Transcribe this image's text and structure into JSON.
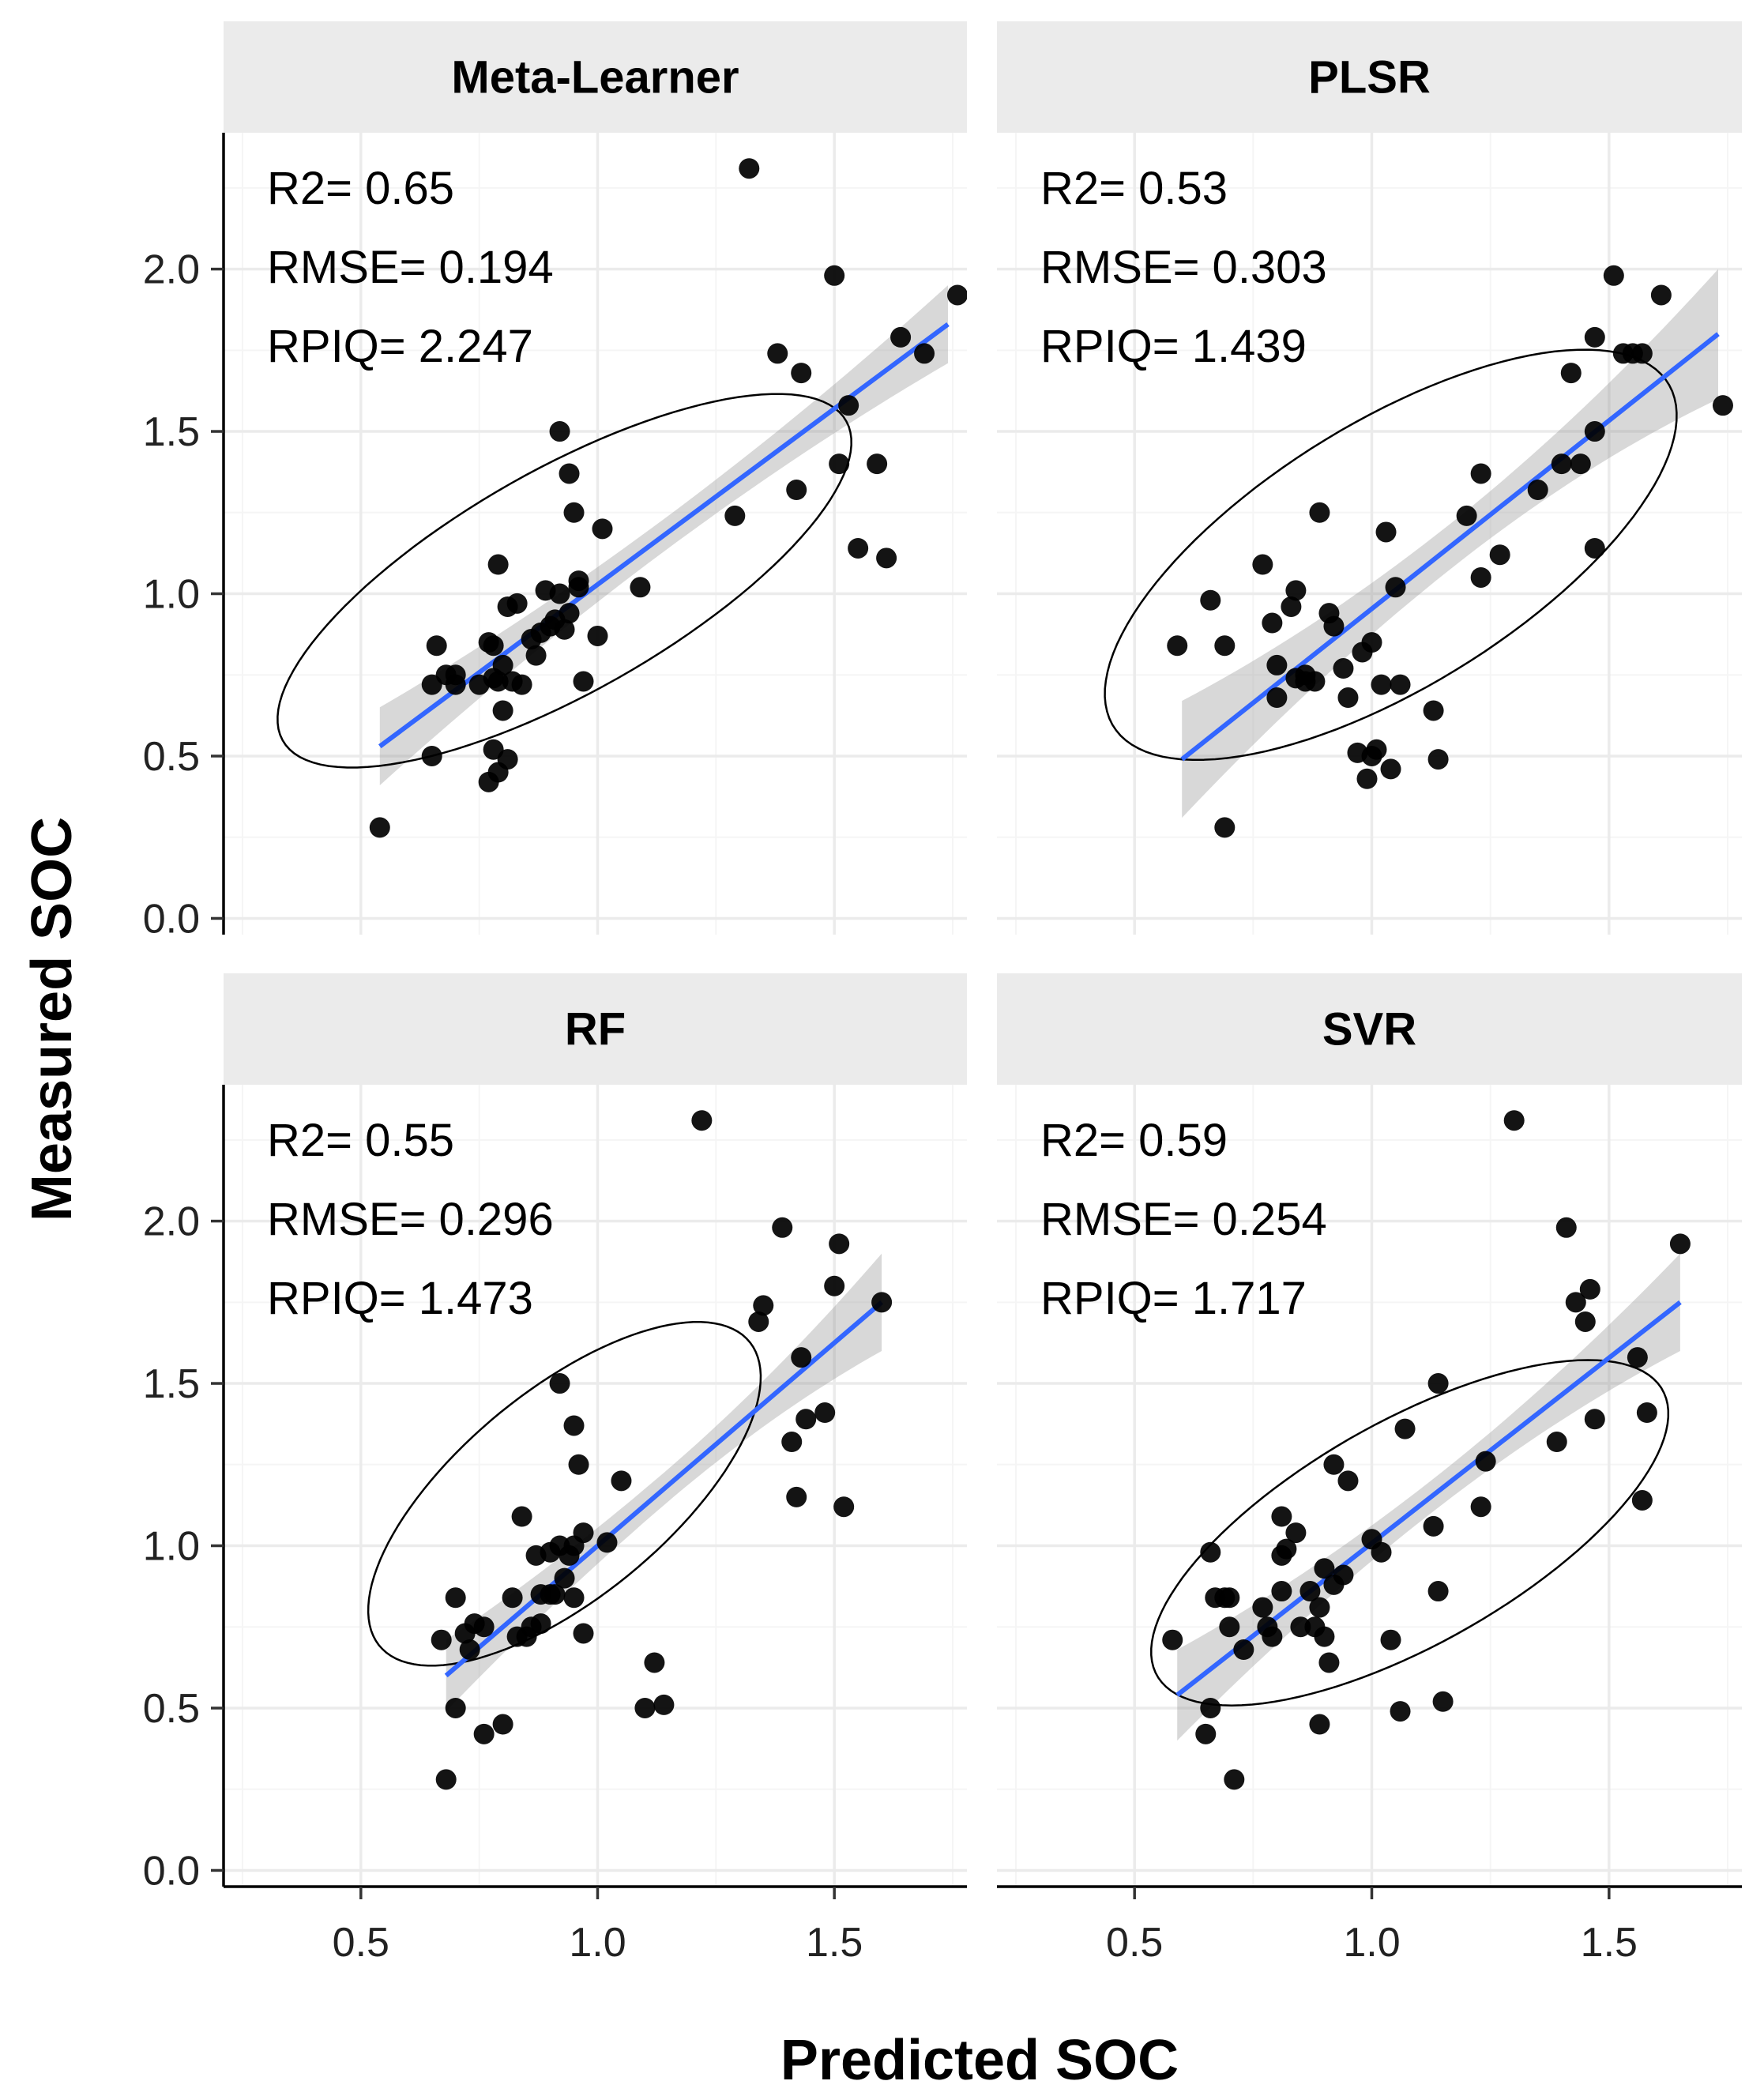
{
  "chart_data": {
    "type": "scatter",
    "xlabel": "Predicted SOC",
    "ylabel": "Measured SOC",
    "xlim": [
      0.21,
      1.78
    ],
    "ylim": [
      -0.05,
      2.42
    ],
    "xticks": [
      "0.5",
      "1.0",
      "1.5"
    ],
    "xtick_values": [
      0.5,
      1.0,
      1.5
    ],
    "yticks": [
      "0.0",
      "0.5",
      "1.0",
      "1.5",
      "2.0"
    ],
    "ytick_values": [
      0.0,
      0.5,
      1.0,
      1.5,
      2.0
    ],
    "grid": true,
    "colors": {
      "points": "#000000",
      "fit_line": "#3366ff",
      "band": "#999999",
      "strip": "#ebebeb",
      "grid": "#ebebeb"
    },
    "panels": [
      {
        "name": "Meta-Learner",
        "stats": [
          "R2= 0.65",
          "RMSE= 0.194",
          "RPIQ= 2.247"
        ],
        "fit": {
          "x0": 0.54,
          "y0": 0.53,
          "x1": 1.74,
          "y1": 1.83
        },
        "band_halfwidth": {
          "start": 0.12,
          "mid": 0.05,
          "end": 0.12
        },
        "ellipse": {
          "cx": 0.93,
          "cy": 1.04,
          "rx": 0.78,
          "ry": 0.3,
          "angle_deg": 43
        },
        "points": [
          [
            0.54,
            0.28
          ],
          [
            0.65,
            0.5
          ],
          [
            0.66,
            0.84
          ],
          [
            0.65,
            0.72
          ],
          [
            0.68,
            0.75
          ],
          [
            0.7,
            0.72
          ],
          [
            0.7,
            0.75
          ],
          [
            0.75,
            0.72
          ],
          [
            0.77,
            0.85
          ],
          [
            0.78,
            0.84
          ],
          [
            0.78,
            0.74
          ],
          [
            0.79,
            0.73
          ],
          [
            0.77,
            0.42
          ],
          [
            0.78,
            0.52
          ],
          [
            0.79,
            0.45
          ],
          [
            0.81,
            0.49
          ],
          [
            0.8,
            0.64
          ],
          [
            0.79,
            1.09
          ],
          [
            0.8,
            0.78
          ],
          [
            0.81,
            0.96
          ],
          [
            0.83,
            0.97
          ],
          [
            0.82,
            0.73
          ],
          [
            0.84,
            0.72
          ],
          [
            0.86,
            0.86
          ],
          [
            0.87,
            0.81
          ],
          [
            0.88,
            0.88
          ],
          [
            0.89,
            1.01
          ],
          [
            0.9,
            0.9
          ],
          [
            0.91,
            0.92
          ],
          [
            0.92,
            1.0
          ],
          [
            0.92,
            1.5
          ],
          [
            0.93,
            0.89
          ],
          [
            0.94,
            1.37
          ],
          [
            0.94,
            0.94
          ],
          [
            0.95,
            1.25
          ],
          [
            0.96,
            1.04
          ],
          [
            0.96,
            1.02
          ],
          [
            0.97,
            0.73
          ],
          [
            1.0,
            0.87
          ],
          [
            1.01,
            1.2
          ],
          [
            1.09,
            1.02
          ],
          [
            1.29,
            1.24
          ],
          [
            1.32,
            2.31
          ],
          [
            1.38,
            1.74
          ],
          [
            1.42,
            1.32
          ],
          [
            1.43,
            1.68
          ],
          [
            1.5,
            1.98
          ],
          [
            1.51,
            1.4
          ],
          [
            1.53,
            1.58
          ],
          [
            1.55,
            1.14
          ],
          [
            1.59,
            1.4
          ],
          [
            1.61,
            1.11
          ],
          [
            1.64,
            1.79
          ],
          [
            1.69,
            1.74
          ],
          [
            1.76,
            1.92
          ]
        ]
      },
      {
        "name": "PLSR",
        "stats": [
          "R2= 0.53",
          "RMSE= 0.303",
          "RPIQ= 1.439"
        ],
        "fit": {
          "x0": 0.6,
          "y0": 0.49,
          "x1": 1.73,
          "y1": 1.8
        },
        "band_halfwidth": {
          "start": 0.18,
          "mid": 0.07,
          "end": 0.2
        },
        "ellipse": {
          "cx": 1.04,
          "cy": 1.12,
          "rx": 0.8,
          "ry": 0.35,
          "angle_deg": 47
        },
        "points": [
          [
            0.59,
            0.84
          ],
          [
            0.66,
            0.98
          ],
          [
            0.69,
            0.28
          ],
          [
            0.69,
            0.84
          ],
          [
            0.77,
            1.09
          ],
          [
            0.79,
            0.91
          ],
          [
            0.8,
            0.78
          ],
          [
            0.8,
            0.68
          ],
          [
            0.83,
            0.96
          ],
          [
            0.84,
            1.01
          ],
          [
            0.84,
            0.74
          ],
          [
            0.86,
            0.73
          ],
          [
            0.86,
            0.75
          ],
          [
            0.88,
            0.73
          ],
          [
            0.89,
            1.25
          ],
          [
            0.91,
            0.94
          ],
          [
            0.92,
            0.9
          ],
          [
            0.94,
            0.77
          ],
          [
            0.95,
            0.68
          ],
          [
            0.97,
            0.51
          ],
          [
            0.98,
            0.82
          ],
          [
            0.99,
            0.43
          ],
          [
            1.0,
            0.5
          ],
          [
            1.0,
            0.85
          ],
          [
            1.01,
            0.52
          ],
          [
            1.02,
            0.72
          ],
          [
            1.03,
            1.19
          ],
          [
            1.04,
            0.46
          ],
          [
            1.05,
            1.02
          ],
          [
            1.06,
            0.72
          ],
          [
            1.13,
            0.64
          ],
          [
            1.14,
            0.49
          ],
          [
            1.2,
            1.24
          ],
          [
            1.23,
            1.05
          ],
          [
            1.23,
            1.37
          ],
          [
            1.27,
            1.12
          ],
          [
            1.35,
            1.32
          ],
          [
            1.4,
            1.4
          ],
          [
            1.42,
            1.68
          ],
          [
            1.44,
            1.4
          ],
          [
            1.47,
            1.14
          ],
          [
            1.47,
            1.79
          ],
          [
            1.47,
            1.5
          ],
          [
            1.51,
            1.98
          ],
          [
            1.53,
            1.74
          ],
          [
            1.55,
            1.74
          ],
          [
            1.57,
            1.74
          ],
          [
            1.61,
            1.92
          ],
          [
            1.74,
            1.58
          ]
        ]
      },
      {
        "name": "RF",
        "stats": [
          "R2= 0.55",
          "RMSE= 0.296",
          "RPIQ= 1.473"
        ],
        "fit": {
          "x0": 0.68,
          "y0": 0.6,
          "x1": 1.6,
          "y1": 1.75
        },
        "band_halfwidth": {
          "start": 0.11,
          "mid": 0.05,
          "end": 0.15
        },
        "ellipse": {
          "cx": 0.93,
          "cy": 1.16,
          "rx": 0.62,
          "ry": 0.26,
          "angle_deg": 55
        },
        "points": [
          [
            0.67,
            0.71
          ],
          [
            0.68,
            0.28
          ],
          [
            0.7,
            0.84
          ],
          [
            0.7,
            0.5
          ],
          [
            0.72,
            0.73
          ],
          [
            0.73,
            0.68
          ],
          [
            0.74,
            0.76
          ],
          [
            0.76,
            0.75
          ],
          [
            0.76,
            0.42
          ],
          [
            0.8,
            0.45
          ],
          [
            0.82,
            0.84
          ],
          [
            0.83,
            0.72
          ],
          [
            0.84,
            1.09
          ],
          [
            0.85,
            0.72
          ],
          [
            0.86,
            0.75
          ],
          [
            0.87,
            0.97
          ],
          [
            0.88,
            0.85
          ],
          [
            0.88,
            0.76
          ],
          [
            0.9,
            0.98
          ],
          [
            0.9,
            0.85
          ],
          [
            0.91,
            0.85
          ],
          [
            0.92,
            1.0
          ],
          [
            0.92,
            1.5
          ],
          [
            0.93,
            0.9
          ],
          [
            0.94,
            0.97
          ],
          [
            0.95,
            0.84
          ],
          [
            0.95,
            1.37
          ],
          [
            0.95,
            1.0
          ],
          [
            0.96,
            1.25
          ],
          [
            0.97,
            1.04
          ],
          [
            0.97,
            0.73
          ],
          [
            1.02,
            1.01
          ],
          [
            1.05,
            1.2
          ],
          [
            1.1,
            0.5
          ],
          [
            1.12,
            0.64
          ],
          [
            1.14,
            0.51
          ],
          [
            1.22,
            2.31
          ],
          [
            1.34,
            1.69
          ],
          [
            1.35,
            1.74
          ],
          [
            1.39,
            1.98
          ],
          [
            1.41,
            1.32
          ],
          [
            1.42,
            1.15
          ],
          [
            1.43,
            1.58
          ],
          [
            1.44,
            1.39
          ],
          [
            1.48,
            1.41
          ],
          [
            1.5,
            1.8
          ],
          [
            1.51,
            1.93
          ],
          [
            1.52,
            1.12
          ],
          [
            1.6,
            1.75
          ]
        ]
      },
      {
        "name": "SVR",
        "stats": [
          "R2= 0.59",
          "RMSE= 0.254",
          "RPIQ= 1.717"
        ],
        "fit": {
          "x0": 0.59,
          "y0": 0.54,
          "x1": 1.65,
          "y1": 1.75
        },
        "band_halfwidth": {
          "start": 0.14,
          "mid": 0.05,
          "end": 0.15
        },
        "ellipse": {
          "cx": 1.08,
          "cy": 1.04,
          "rx": 0.7,
          "ry": 0.3,
          "angle_deg": 44
        },
        "points": [
          [
            0.58,
            0.71
          ],
          [
            0.65,
            0.42
          ],
          [
            0.66,
            0.5
          ],
          [
            0.66,
            0.98
          ],
          [
            0.67,
            0.84
          ],
          [
            0.69,
            0.84
          ],
          [
            0.7,
            0.75
          ],
          [
            0.7,
            0.84
          ],
          [
            0.71,
            0.28
          ],
          [
            0.73,
            0.68
          ],
          [
            0.77,
            0.81
          ],
          [
            0.78,
            0.75
          ],
          [
            0.79,
            0.72
          ],
          [
            0.81,
            0.86
          ],
          [
            0.81,
            0.97
          ],
          [
            0.81,
            1.09
          ],
          [
            0.82,
            0.99
          ],
          [
            0.84,
            1.04
          ],
          [
            0.85,
            0.75
          ],
          [
            0.87,
            0.86
          ],
          [
            0.88,
            0.75
          ],
          [
            0.89,
            0.45
          ],
          [
            0.89,
            0.81
          ],
          [
            0.9,
            0.93
          ],
          [
            0.9,
            0.72
          ],
          [
            0.91,
            0.64
          ],
          [
            0.92,
            1.25
          ],
          [
            0.92,
            0.88
          ],
          [
            0.94,
            0.91
          ],
          [
            0.95,
            1.2
          ],
          [
            1.0,
            1.02
          ],
          [
            1.02,
            0.98
          ],
          [
            1.04,
            0.71
          ],
          [
            1.06,
            0.49
          ],
          [
            1.07,
            1.36
          ],
          [
            1.13,
            1.06
          ],
          [
            1.14,
            0.86
          ],
          [
            1.14,
            1.5
          ],
          [
            1.15,
            0.52
          ],
          [
            1.23,
            1.12
          ],
          [
            1.24,
            1.26
          ],
          [
            1.3,
            2.31
          ],
          [
            1.39,
            1.32
          ],
          [
            1.41,
            1.98
          ],
          [
            1.43,
            1.75
          ],
          [
            1.45,
            1.69
          ],
          [
            1.46,
            1.79
          ],
          [
            1.47,
            1.39
          ],
          [
            1.56,
            1.58
          ],
          [
            1.57,
            1.14
          ],
          [
            1.58,
            1.41
          ],
          [
            1.65,
            1.93
          ]
        ]
      }
    ]
  }
}
